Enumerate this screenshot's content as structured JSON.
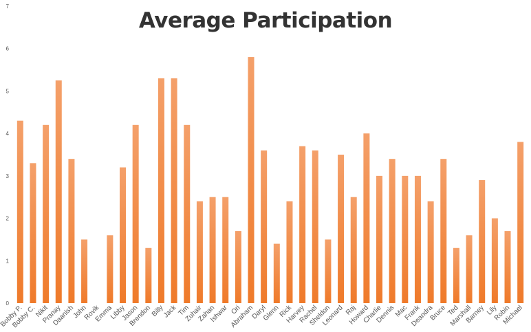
{
  "chart_data": {
    "type": "bar",
    "title": "Average Participation",
    "xlabel": "",
    "ylabel": "",
    "ylim": [
      0,
      7
    ],
    "yticks": [
      0,
      1,
      2,
      3,
      4,
      5,
      6,
      7
    ],
    "grid": false,
    "legend": "none",
    "bar_color_top": "#f4a06a",
    "bar_color_bottom": "#ef7a2a",
    "categories": [
      "Bobby P.",
      "Bobby C.",
      "Nikit",
      "Pranay",
      "Daanish",
      "John",
      "Rovik",
      "Emma",
      "Libby",
      "Jason",
      "Brendon",
      "Billy",
      "Jack",
      "Tim",
      "Zuhair",
      "Zahan",
      "Ishwar",
      "Ori",
      "Abraham",
      "Daryl",
      "Glenn",
      "Rick",
      "Harvey",
      "Rachel",
      "Sheldon",
      "Leonard",
      "Raj",
      "Howard",
      "Charlie",
      "Dennis",
      "Mac",
      "Frank",
      "Deandra",
      "Bruce",
      "Ted",
      "Marshall",
      "Barney",
      "Lily",
      "Robin",
      "Michael"
    ],
    "values": [
      4.3,
      3.3,
      4.2,
      5.25,
      3.4,
      1.5,
      0,
      1.6,
      3.2,
      4.2,
      1.3,
      5.3,
      5.3,
      4.2,
      2.4,
      2.5,
      2.5,
      1.7,
      5.8,
      3.6,
      1.4,
      2.4,
      3.7,
      3.6,
      1.5,
      3.5,
      2.5,
      4.0,
      3.0,
      3.4,
      3.0,
      3.0,
      2.4,
      3.4,
      1.3,
      1.6,
      2.9,
      2.0,
      1.7,
      3.8
    ]
  }
}
